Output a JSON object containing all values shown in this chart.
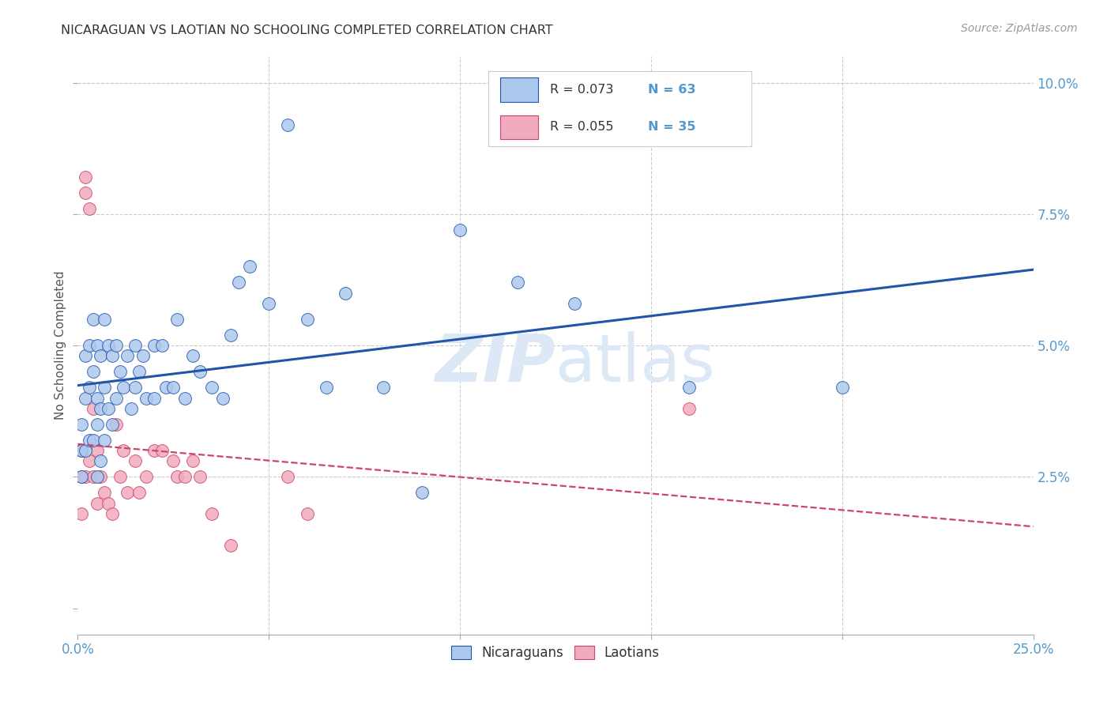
{
  "title": "NICARAGUAN VS LAOTIAN NO SCHOOLING COMPLETED CORRELATION CHART",
  "source": "Source: ZipAtlas.com",
  "ylabel": "No Schooling Completed",
  "xlim": [
    0.0,
    0.25
  ],
  "ylim": [
    -0.005,
    0.105
  ],
  "nic_color": "#adc8ed",
  "lao_color": "#f2abbe",
  "nic_line_color": "#2255aa",
  "lao_line_color": "#cc4466",
  "background_color": "#ffffff",
  "grid_color": "#cccccc",
  "watermark_color": "#dce8f5",
  "R_nic": 0.073,
  "N_nic": 63,
  "R_lao": 0.055,
  "N_lao": 35,
  "nic_scatter_x": [
    0.001,
    0.001,
    0.001,
    0.002,
    0.002,
    0.002,
    0.003,
    0.003,
    0.003,
    0.004,
    0.004,
    0.004,
    0.005,
    0.005,
    0.005,
    0.005,
    0.006,
    0.006,
    0.006,
    0.007,
    0.007,
    0.007,
    0.008,
    0.008,
    0.009,
    0.009,
    0.01,
    0.01,
    0.011,
    0.012,
    0.013,
    0.014,
    0.015,
    0.015,
    0.016,
    0.017,
    0.018,
    0.02,
    0.02,
    0.022,
    0.023,
    0.025,
    0.026,
    0.028,
    0.03,
    0.032,
    0.035,
    0.038,
    0.04,
    0.042,
    0.045,
    0.05,
    0.055,
    0.06,
    0.065,
    0.07,
    0.08,
    0.09,
    0.1,
    0.115,
    0.13,
    0.16,
    0.2
  ],
  "nic_scatter_y": [
    0.035,
    0.03,
    0.025,
    0.048,
    0.04,
    0.03,
    0.05,
    0.042,
    0.032,
    0.055,
    0.045,
    0.032,
    0.05,
    0.04,
    0.035,
    0.025,
    0.048,
    0.038,
    0.028,
    0.055,
    0.042,
    0.032,
    0.05,
    0.038,
    0.048,
    0.035,
    0.05,
    0.04,
    0.045,
    0.042,
    0.048,
    0.038,
    0.05,
    0.042,
    0.045,
    0.048,
    0.04,
    0.05,
    0.04,
    0.05,
    0.042,
    0.042,
    0.055,
    0.04,
    0.048,
    0.045,
    0.042,
    0.04,
    0.052,
    0.062,
    0.065,
    0.058,
    0.092,
    0.055,
    0.042,
    0.06,
    0.042,
    0.022,
    0.072,
    0.062,
    0.058,
    0.042,
    0.042
  ],
  "lao_scatter_x": [
    0.001,
    0.001,
    0.001,
    0.002,
    0.002,
    0.002,
    0.003,
    0.003,
    0.004,
    0.004,
    0.005,
    0.005,
    0.006,
    0.007,
    0.008,
    0.009,
    0.01,
    0.011,
    0.012,
    0.013,
    0.015,
    0.016,
    0.018,
    0.02,
    0.022,
    0.025,
    0.026,
    0.028,
    0.03,
    0.032,
    0.035,
    0.04,
    0.055,
    0.06,
    0.16
  ],
  "lao_scatter_y": [
    0.03,
    0.025,
    0.018,
    0.082,
    0.079,
    0.025,
    0.076,
    0.028,
    0.038,
    0.025,
    0.03,
    0.02,
    0.025,
    0.022,
    0.02,
    0.018,
    0.035,
    0.025,
    0.03,
    0.022,
    0.028,
    0.022,
    0.025,
    0.03,
    0.03,
    0.028,
    0.025,
    0.025,
    0.028,
    0.025,
    0.018,
    0.012,
    0.025,
    0.018,
    0.038
  ]
}
